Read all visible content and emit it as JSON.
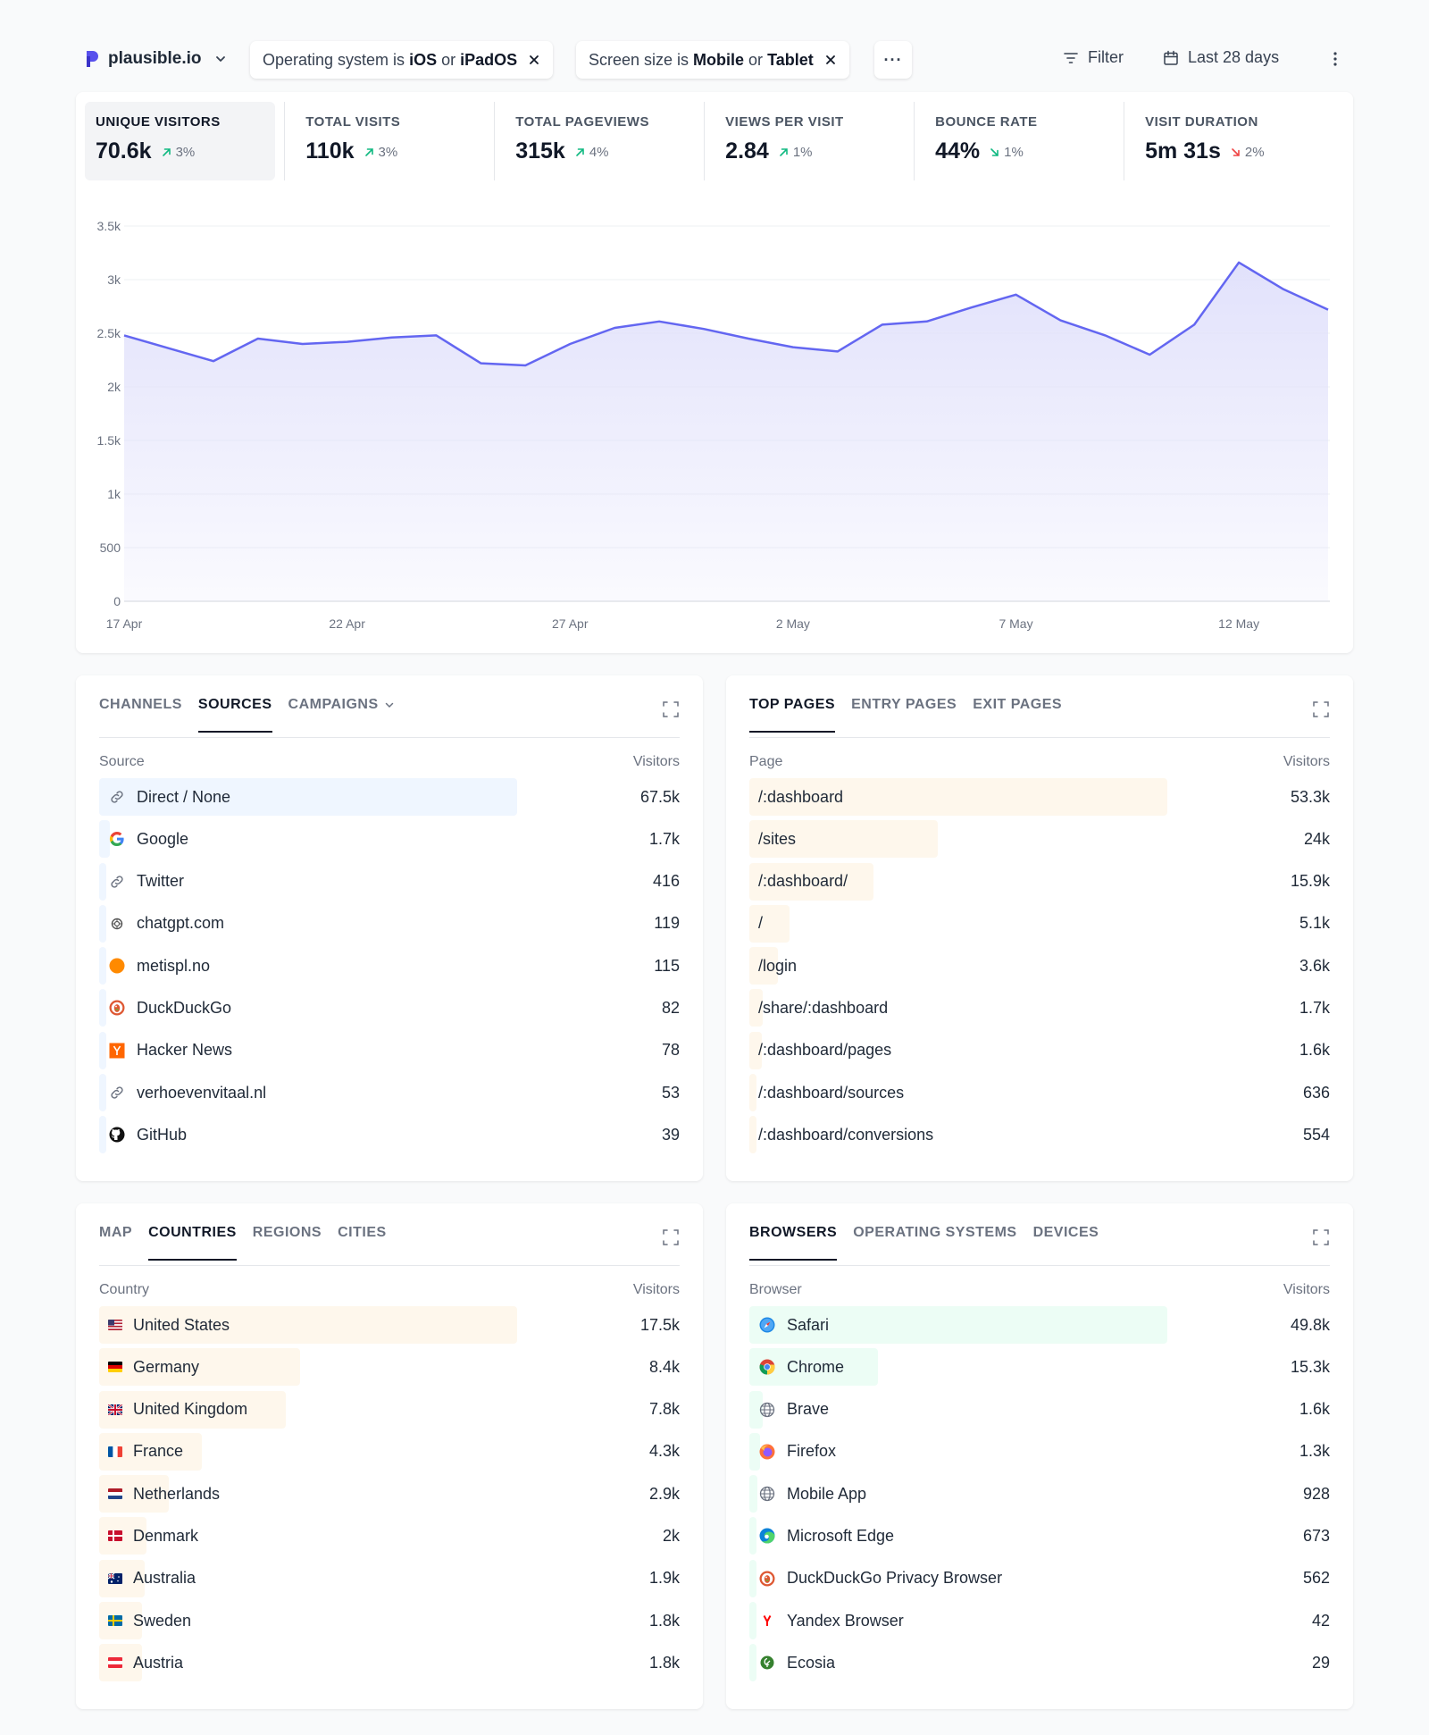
{
  "topbar": {
    "site_name": "plausible.io",
    "filters": [
      {
        "pre": "Operating system is ",
        "v1": "iOS",
        "mid": " or ",
        "v2": "iPadOS"
      },
      {
        "pre": "Screen size is ",
        "v1": "Mobile",
        "mid": " or ",
        "v2": "Tablet"
      }
    ],
    "more_label": "···",
    "filter_label": "Filter",
    "period_label": "Last 28 days"
  },
  "metrics": [
    {
      "label": "UNIQUE VISITORS",
      "value": "70.6k",
      "change": "3%",
      "direction": "up"
    },
    {
      "label": "TOTAL VISITS",
      "value": "110k",
      "change": "3%",
      "direction": "up"
    },
    {
      "label": "TOTAL PAGEVIEWS",
      "value": "315k",
      "change": "4%",
      "direction": "up"
    },
    {
      "label": "VIEWS PER VISIT",
      "value": "2.84",
      "change": "1%",
      "direction": "up"
    },
    {
      "label": "BOUNCE RATE",
      "value": "44%",
      "change": "1%",
      "direction": "down-good"
    },
    {
      "label": "VISIT DURATION",
      "value": "5m 31s",
      "change": "2%",
      "direction": "down-bad"
    }
  ],
  "chart_data": {
    "type": "area",
    "y_ticks": [
      "0",
      "500",
      "1k",
      "1.5k",
      "2k",
      "2.5k",
      "3k",
      "3.5k"
    ],
    "ylim": [
      0,
      3500
    ],
    "x_tick_labels": [
      "17 Apr",
      "22 Apr",
      "27 Apr",
      "2 May",
      "7 May",
      "12 May"
    ],
    "x": [
      "17 Apr",
      "18 Apr",
      "19 Apr",
      "20 Apr",
      "21 Apr",
      "22 Apr",
      "23 Apr",
      "24 Apr",
      "25 Apr",
      "26 Apr",
      "27 Apr",
      "28 Apr",
      "29 Apr",
      "30 Apr",
      "1 May",
      "2 May",
      "3 May",
      "4 May",
      "5 May",
      "6 May",
      "7 May",
      "8 May",
      "9 May",
      "10 May",
      "11 May",
      "12 May",
      "13 May",
      "14 May"
    ],
    "series": [
      {
        "values": [
          2480,
          2360,
          2240,
          2450,
          2400,
          2420,
          2460,
          2480,
          2220,
          2200,
          2400,
          2550,
          2610,
          2540,
          2450,
          2370,
          2330,
          2580,
          2610,
          2740,
          2860,
          2620,
          2480,
          2300,
          2580,
          3160,
          2910,
          2720
        ]
      }
    ],
    "colors": {
      "line": "#6366f1",
      "fill": "#e0e0fb"
    },
    "grid": true
  },
  "sources": {
    "tabs": [
      "CHANNELS",
      "SOURCES",
      "CAMPAIGNS"
    ],
    "active_tab": 1,
    "col_label": "Source",
    "col_value": "Visitors",
    "bar_color": "#eff6ff",
    "rows": [
      {
        "label": "Direct / None",
        "value": "67.5k",
        "icon": "link-icon",
        "share": 1.0
      },
      {
        "label": "Google",
        "value": "1.7k",
        "icon": "google-icon",
        "share": 0.025
      },
      {
        "label": "Twitter",
        "value": "416",
        "icon": "link-icon",
        "share": 0.006
      },
      {
        "label": "chatgpt.com",
        "value": "119",
        "icon": "openai-icon",
        "share": 0.002
      },
      {
        "label": "metispl.no",
        "value": "115",
        "icon": "orange-dot-icon",
        "share": 0.002
      },
      {
        "label": "DuckDuckGo",
        "value": "82",
        "icon": "duckduckgo-icon",
        "share": 0.001
      },
      {
        "label": "Hacker News",
        "value": "78",
        "icon": "hackernews-icon",
        "share": 0.001
      },
      {
        "label": "verhoevenvitaal.nl",
        "value": "53",
        "icon": "link-icon",
        "share": 0.001
      },
      {
        "label": "GitHub",
        "value": "39",
        "icon": "github-icon",
        "share": 0.001
      }
    ]
  },
  "pages": {
    "tabs": [
      "TOP PAGES",
      "ENTRY PAGES",
      "EXIT PAGES"
    ],
    "active_tab": 0,
    "col_label": "Page",
    "col_value": "Visitors",
    "bar_color": "#fef7ec",
    "rows": [
      {
        "label": "/:dashboard",
        "value": "53.3k",
        "share": 1.0
      },
      {
        "label": "/sites",
        "value": "24k",
        "share": 0.45
      },
      {
        "label": "/:dashboard/",
        "value": "15.9k",
        "share": 0.298
      },
      {
        "label": "/",
        "value": "5.1k",
        "share": 0.096
      },
      {
        "label": "/login",
        "value": "3.6k",
        "share": 0.068
      },
      {
        "label": "/share/:dashboard",
        "value": "1.7k",
        "share": 0.032
      },
      {
        "label": "/:dashboard/pages",
        "value": "1.6k",
        "share": 0.03
      },
      {
        "label": "/:dashboard/sources",
        "value": "636",
        "share": 0.012
      },
      {
        "label": "/:dashboard/conversions",
        "value": "554",
        "share": 0.01
      }
    ]
  },
  "countries": {
    "tabs": [
      "MAP",
      "COUNTRIES",
      "REGIONS",
      "CITIES"
    ],
    "active_tab": 1,
    "col_label": "Country",
    "col_value": "Visitors",
    "bar_color": "#fef7ec",
    "rows": [
      {
        "label": "United States",
        "value": "17.5k",
        "flag": "us",
        "share": 1.0
      },
      {
        "label": "Germany",
        "value": "8.4k",
        "flag": "de",
        "share": 0.48
      },
      {
        "label": "United Kingdom",
        "value": "7.8k",
        "flag": "gb",
        "share": 0.446
      },
      {
        "label": "France",
        "value": "4.3k",
        "flag": "fr",
        "share": 0.246
      },
      {
        "label": "Netherlands",
        "value": "2.9k",
        "flag": "nl",
        "share": 0.166
      },
      {
        "label": "Denmark",
        "value": "2k",
        "flag": "dk",
        "share": 0.114
      },
      {
        "label": "Australia",
        "value": "1.9k",
        "flag": "au",
        "share": 0.109
      },
      {
        "label": "Sweden",
        "value": "1.8k",
        "flag": "se",
        "share": 0.103
      },
      {
        "label": "Austria",
        "value": "1.8k",
        "flag": "at",
        "share": 0.103
      }
    ]
  },
  "browsers": {
    "tabs": [
      "BROWSERS",
      "OPERATING SYSTEMS",
      "DEVICES"
    ],
    "active_tab": 0,
    "col_label": "Browser",
    "col_value": "Visitors",
    "bar_color": "#ecfdf5",
    "rows": [
      {
        "label": "Safari",
        "value": "49.8k",
        "icon": "safari-icon",
        "share": 1.0
      },
      {
        "label": "Chrome",
        "value": "15.3k",
        "icon": "chrome-icon",
        "share": 0.307
      },
      {
        "label": "Brave",
        "value": "1.6k",
        "icon": "globe-icon",
        "share": 0.032
      },
      {
        "label": "Firefox",
        "value": "1.3k",
        "icon": "firefox-icon",
        "share": 0.026
      },
      {
        "label": "Mobile App",
        "value": "928",
        "icon": "globe-icon",
        "share": 0.019
      },
      {
        "label": "Microsoft Edge",
        "value": "673",
        "icon": "edge-icon",
        "share": 0.014
      },
      {
        "label": "DuckDuckGo Privacy Browser",
        "value": "562",
        "icon": "duckduckgo-icon",
        "share": 0.011
      },
      {
        "label": "Yandex Browser",
        "value": "42",
        "icon": "yandex-icon",
        "share": 0.001
      },
      {
        "label": "Ecosia",
        "value": "29",
        "icon": "ecosia-icon",
        "share": 0.001
      }
    ]
  }
}
